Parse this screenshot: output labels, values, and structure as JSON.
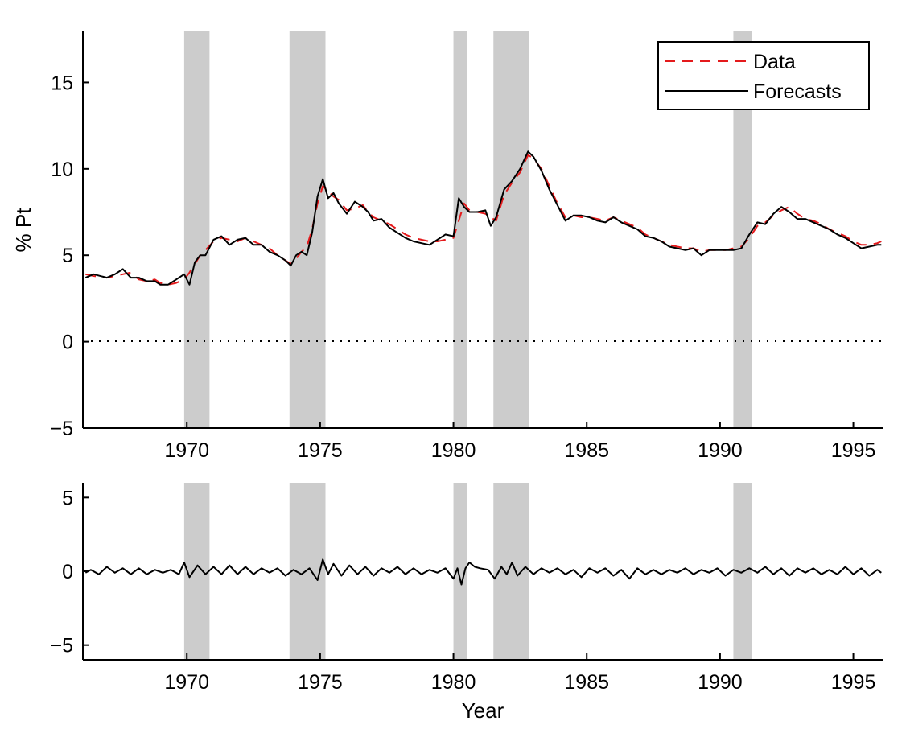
{
  "chart_data": [
    {
      "type": "line",
      "title": "",
      "xlabel": "",
      "ylabel": "% Pt",
      "xlim": [
        1966.1,
        1996.1
      ],
      "ylim": [
        -5,
        18
      ],
      "x_ticks": [
        1970,
        1975,
        1980,
        1985,
        1990,
        1995
      ],
      "y_ticks": [
        -5,
        0,
        5,
        10,
        15
      ],
      "grid": false,
      "legend": {
        "placement": "top-right",
        "entries": [
          "Data",
          "Forecasts"
        ]
      },
      "shaded_regions": [
        [
          1969.9,
          1970.85
        ],
        [
          1973.85,
          1975.2
        ],
        [
          1980.0,
          1980.5
        ],
        [
          1981.5,
          1982.85
        ],
        [
          1990.5,
          1991.2
        ]
      ],
      "reference_line": {
        "y": 0,
        "style": "dotted"
      },
      "series": [
        {
          "name": "Data",
          "color": "#e41a1c",
          "style": "dashed",
          "x": [
            1966.2,
            1966.5,
            1967,
            1967.3,
            1967.6,
            1967.9,
            1968.2,
            1968.5,
            1968.8,
            1969,
            1969.3,
            1969.6,
            1969.9,
            1970.1,
            1970.3,
            1970.5,
            1970.7,
            1971,
            1971.3,
            1971.6,
            1971.9,
            1972.2,
            1972.5,
            1972.8,
            1973.1,
            1973.4,
            1973.7,
            1973.9,
            1974.1,
            1974.3,
            1974.5,
            1974.7,
            1974.9,
            1975.1,
            1975.3,
            1975.5,
            1975.7,
            1976,
            1976.3,
            1976.6,
            1976.8,
            1977,
            1977.3,
            1977.6,
            1977.9,
            1978.2,
            1978.5,
            1978.8,
            1979.1,
            1979.4,
            1979.7,
            1980,
            1980.2,
            1980.4,
            1980.6,
            1980.9,
            1981.2,
            1981.4,
            1981.6,
            1981.9,
            1982.2,
            1982.5,
            1982.8,
            1983,
            1983.3,
            1983.6,
            1983.9,
            1984.2,
            1984.5,
            1984.8,
            1985.1,
            1985.4,
            1985.7,
            1986,
            1986.3,
            1986.6,
            1986.9,
            1987.2,
            1987.5,
            1987.8,
            1988.1,
            1988.4,
            1988.7,
            1989,
            1989.3,
            1989.6,
            1989.9,
            1990.2,
            1990.5,
            1990.8,
            1991.1,
            1991.4,
            1991.7,
            1992,
            1992.3,
            1992.6,
            1992.9,
            1993.2,
            1993.5,
            1993.8,
            1994.1,
            1994.4,
            1994.7,
            1995,
            1995.3,
            1995.6,
            1995.9,
            1996.05
          ],
          "y": [
            3.9,
            3.8,
            3.7,
            3.8,
            3.9,
            4.0,
            3.6,
            3.5,
            3.6,
            3.4,
            3.3,
            3.4,
            3.6,
            4.0,
            4.5,
            5.0,
            5.3,
            5.8,
            6.0,
            5.9,
            5.8,
            6.0,
            5.8,
            5.6,
            5.4,
            5.0,
            4.7,
            4.5,
            4.8,
            5.2,
            5.5,
            6.5,
            8.0,
            9.0,
            8.7,
            8.4,
            8.2,
            7.6,
            7.7,
            7.9,
            7.5,
            7.2,
            7.0,
            6.8,
            6.5,
            6.2,
            6.0,
            5.9,
            5.8,
            5.8,
            5.9,
            6.0,
            7.0,
            8.0,
            7.6,
            7.5,
            7.4,
            7.2,
            7.0,
            8.5,
            9.2,
            9.8,
            10.8,
            10.6,
            10.0,
            9.0,
            8.0,
            7.2,
            7.3,
            7.2,
            7.2,
            7.1,
            7.0,
            7.2,
            7.0,
            6.8,
            6.6,
            6.2,
            6.0,
            5.8,
            5.6,
            5.5,
            5.4,
            5.4,
            5.2,
            5.3,
            5.3,
            5.3,
            5.4,
            5.5,
            6.0,
            6.7,
            6.9,
            7.3,
            7.6,
            7.8,
            7.4,
            7.1,
            7.0,
            6.8,
            6.5,
            6.3,
            6.1,
            5.8,
            5.6,
            5.6,
            5.7,
            5.8
          ]
        },
        {
          "name": "Forecasts",
          "color": "#000000",
          "style": "solid",
          "x": [
            1966.2,
            1966.5,
            1967,
            1967.3,
            1967.6,
            1967.9,
            1968.2,
            1968.5,
            1968.8,
            1969,
            1969.3,
            1969.6,
            1969.9,
            1970.1,
            1970.3,
            1970.5,
            1970.7,
            1971,
            1971.3,
            1971.6,
            1971.9,
            1972.2,
            1972.5,
            1972.8,
            1973.1,
            1973.4,
            1973.7,
            1973.9,
            1974.1,
            1974.3,
            1974.5,
            1974.7,
            1974.9,
            1975.1,
            1975.3,
            1975.5,
            1975.7,
            1976,
            1976.3,
            1976.6,
            1976.8,
            1977,
            1977.3,
            1977.6,
            1977.9,
            1978.2,
            1978.5,
            1978.8,
            1979.1,
            1979.4,
            1979.7,
            1980,
            1980.2,
            1980.4,
            1980.6,
            1980.9,
            1981.2,
            1981.4,
            1981.6,
            1981.9,
            1982.2,
            1982.5,
            1982.8,
            1983,
            1983.3,
            1983.6,
            1983.9,
            1984.2,
            1984.5,
            1984.8,
            1985.1,
            1985.4,
            1985.7,
            1986,
            1986.3,
            1986.6,
            1986.9,
            1987.2,
            1987.5,
            1987.8,
            1988.1,
            1988.4,
            1988.7,
            1989,
            1989.3,
            1989.6,
            1989.9,
            1990.2,
            1990.5,
            1990.8,
            1991.1,
            1991.4,
            1991.7,
            1992,
            1992.3,
            1992.6,
            1992.9,
            1993.2,
            1993.5,
            1993.8,
            1994.1,
            1994.4,
            1994.7,
            1995,
            1995.3,
            1995.6,
            1995.9,
            1996.05
          ],
          "y": [
            3.7,
            3.9,
            3.7,
            3.9,
            4.2,
            3.7,
            3.7,
            3.5,
            3.5,
            3.3,
            3.3,
            3.6,
            3.9,
            3.3,
            4.6,
            5.0,
            5.0,
            5.9,
            6.1,
            5.6,
            5.9,
            6.0,
            5.6,
            5.6,
            5.2,
            5.0,
            4.7,
            4.4,
            5.0,
            5.2,
            5.0,
            6.3,
            8.4,
            9.4,
            8.3,
            8.6,
            8.0,
            7.4,
            8.1,
            7.8,
            7.5,
            7.0,
            7.1,
            6.6,
            6.3,
            6.0,
            5.8,
            5.7,
            5.6,
            5.9,
            6.2,
            6.1,
            8.3,
            7.8,
            7.5,
            7.5,
            7.6,
            6.7,
            7.2,
            8.8,
            9.3,
            10.0,
            11.0,
            10.7,
            9.9,
            8.8,
            7.9,
            7.0,
            7.3,
            7.3,
            7.2,
            7.0,
            6.9,
            7.2,
            6.9,
            6.7,
            6.5,
            6.1,
            6.0,
            5.8,
            5.5,
            5.4,
            5.3,
            5.4,
            5.0,
            5.3,
            5.3,
            5.3,
            5.3,
            5.4,
            6.2,
            6.9,
            6.8,
            7.4,
            7.8,
            7.5,
            7.1,
            7.1,
            6.9,
            6.7,
            6.5,
            6.2,
            6.0,
            5.7,
            5.4,
            5.5,
            5.6,
            5.6
          ]
        }
      ]
    },
    {
      "type": "line",
      "title": "",
      "xlabel": "Year",
      "ylabel": "",
      "xlim": [
        1966.1,
        1996.1
      ],
      "ylim": [
        -6,
        6
      ],
      "x_ticks": [
        1970,
        1975,
        1980,
        1985,
        1990,
        1995
      ],
      "y_ticks": [
        -5,
        0,
        5
      ],
      "grid": false,
      "shaded_regions": [
        [
          1969.9,
          1970.85
        ],
        [
          1973.85,
          1975.2
        ],
        [
          1980.0,
          1980.5
        ],
        [
          1981.5,
          1982.85
        ],
        [
          1990.5,
          1991.2
        ]
      ],
      "series": [
        {
          "color": "#000000",
          "style": "solid",
          "x": [
            1966.2,
            1966.4,
            1966.7,
            1967,
            1967.3,
            1967.6,
            1967.9,
            1968.2,
            1968.5,
            1968.8,
            1969.1,
            1969.4,
            1969.7,
            1969.9,
            1970.1,
            1970.4,
            1970.7,
            1971,
            1971.3,
            1971.6,
            1971.9,
            1972.2,
            1972.5,
            1972.8,
            1973.1,
            1973.4,
            1973.7,
            1974,
            1974.3,
            1974.6,
            1974.9,
            1975.1,
            1975.3,
            1975.5,
            1975.8,
            1976.1,
            1976.4,
            1976.7,
            1977,
            1977.3,
            1977.6,
            1977.9,
            1978.2,
            1978.5,
            1978.8,
            1979.1,
            1979.4,
            1979.7,
            1980,
            1980.15,
            1980.3,
            1980.45,
            1980.6,
            1980.8,
            1981,
            1981.3,
            1981.55,
            1981.8,
            1982,
            1982.2,
            1982.4,
            1982.7,
            1983,
            1983.3,
            1983.6,
            1983.9,
            1984.2,
            1984.5,
            1984.8,
            1985.1,
            1985.4,
            1985.7,
            1986,
            1986.3,
            1986.6,
            1986.9,
            1987.2,
            1987.5,
            1987.8,
            1988.1,
            1988.4,
            1988.7,
            1989,
            1989.3,
            1989.6,
            1989.9,
            1990.2,
            1990.5,
            1990.8,
            1991.1,
            1991.4,
            1991.7,
            1992,
            1992.3,
            1992.6,
            1992.9,
            1993.2,
            1993.5,
            1993.8,
            1994.1,
            1994.4,
            1994.7,
            1995,
            1995.3,
            1995.6,
            1995.9,
            1996.05
          ],
          "y": [
            -0.1,
            0.1,
            -0.2,
            0.3,
            -0.1,
            0.2,
            -0.2,
            0.2,
            -0.2,
            0.1,
            -0.1,
            0.1,
            -0.2,
            0.6,
            -0.4,
            0.4,
            -0.2,
            0.3,
            -0.2,
            0.4,
            -0.2,
            0.3,
            -0.2,
            0.2,
            -0.1,
            0.2,
            -0.3,
            0.1,
            -0.2,
            0.2,
            -0.6,
            0.8,
            -0.2,
            0.5,
            -0.3,
            0.4,
            -0.2,
            0.3,
            -0.3,
            0.2,
            -0.1,
            0.3,
            -0.2,
            0.2,
            -0.2,
            0.1,
            -0.1,
            0.2,
            -0.5,
            0.2,
            -0.9,
            0.2,
            0.6,
            0.3,
            0.2,
            0.1,
            -0.5,
            0.3,
            -0.2,
            0.6,
            -0.3,
            0.3,
            -0.2,
            0.2,
            -0.1,
            0.2,
            -0.2,
            0.1,
            -0.4,
            0.2,
            -0.1,
            0.2,
            -0.3,
            0.1,
            -0.5,
            0.2,
            -0.2,
            0.1,
            -0.2,
            0.1,
            -0.1,
            0.2,
            -0.2,
            0.1,
            -0.1,
            0.2,
            -0.3,
            0.1,
            -0.1,
            0.2,
            -0.1,
            0.3,
            -0.2,
            0.2,
            -0.3,
            0.2,
            -0.1,
            0.2,
            -0.2,
            0.1,
            -0.2,
            0.3,
            -0.2,
            0.2,
            -0.3,
            0.1,
            -0.1
          ]
        }
      ]
    }
  ]
}
